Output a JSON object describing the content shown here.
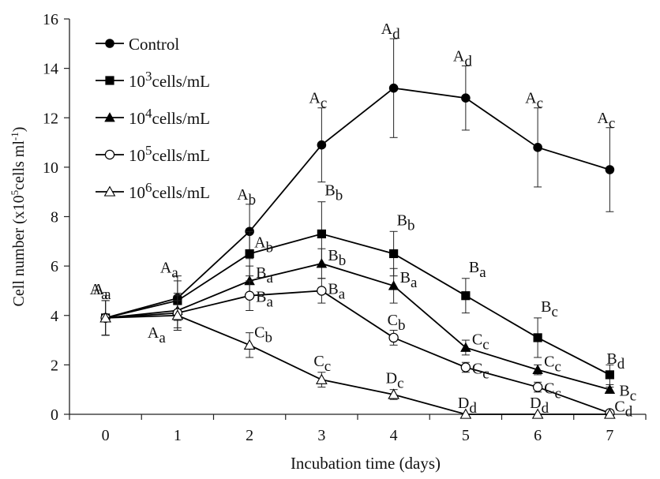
{
  "chart_data": {
    "type": "line",
    "xlabel": "Incubation time (days)",
    "ylabel": {
      "main": "Cell number (x10",
      "exp1": "5",
      "mid": "cells ml",
      "exp2": "-1",
      "end": ")"
    },
    "x": [
      0,
      1,
      2,
      3,
      4,
      5,
      6,
      7
    ],
    "xlim": [
      -0.5,
      7.5
    ],
    "ylim": [
      0,
      16
    ],
    "yticks": [
      0,
      2,
      4,
      6,
      8,
      10,
      12,
      14,
      16
    ],
    "xticks": [
      "0",
      "1",
      "2",
      "3",
      "4",
      "5",
      "6",
      "7"
    ],
    "legend_position": "top-left",
    "series": [
      {
        "name": "Control",
        "name_parts": [
          "Control",
          "",
          ""
        ],
        "marker": "filled-circle",
        "values": [
          3.9,
          4.7,
          7.4,
          10.9,
          13.2,
          12.8,
          10.8,
          9.9
        ],
        "errors": [
          0.7,
          0.9,
          1.1,
          1.5,
          2.0,
          1.3,
          1.6,
          1.7
        ],
        "labels": [
          [
            "A",
            "a"
          ],
          [
            "A",
            "a"
          ],
          [
            "A",
            "b"
          ],
          [
            "A",
            "c"
          ],
          [
            "A",
            "d"
          ],
          [
            "A",
            "d"
          ],
          [
            "A",
            "c"
          ],
          [
            "A",
            "c"
          ]
        ]
      },
      {
        "name": "10^3 cells/mL",
        "name_parts": [
          "10",
          "3",
          "cells/mL"
        ],
        "marker": "filled-square",
        "values": [
          3.9,
          4.6,
          6.5,
          7.3,
          6.5,
          4.8,
          3.1,
          1.6
        ],
        "errors": [
          0.7,
          0.8,
          0.9,
          1.3,
          0.9,
          0.7,
          0.8,
          0.4
        ],
        "labels": [
          null,
          null,
          [
            "A",
            "b"
          ],
          [
            "B",
            "b"
          ],
          [
            "B",
            "b"
          ],
          [
            "B",
            "a"
          ],
          [
            "B",
            "c"
          ],
          [
            "B",
            "d"
          ]
        ]
      },
      {
        "name": "10^4 cells/mL",
        "name_parts": [
          "10",
          "4",
          "cells/mL"
        ],
        "marker": "filled-triangle",
        "values": [
          3.9,
          4.2,
          5.4,
          6.1,
          5.2,
          2.7,
          1.8,
          1.0
        ],
        "errors": [
          0.7,
          0.7,
          0.6,
          0.6,
          0.7,
          0.3,
          0.2,
          0.1
        ],
        "labels": [
          null,
          null,
          [
            "B",
            "a"
          ],
          [
            "B",
            "b"
          ],
          [
            "B",
            "a"
          ],
          [
            "C",
            "c"
          ],
          [
            "C",
            "c"
          ],
          [
            "B",
            "c"
          ]
        ]
      },
      {
        "name": "10^5 cells/mL",
        "name_parts": [
          "10",
          "5",
          "cells/mL"
        ],
        "marker": "open-circle",
        "values": [
          3.9,
          4.1,
          4.8,
          5.0,
          3.1,
          1.9,
          1.1,
          0.05
        ],
        "errors": [
          0.7,
          0.7,
          0.6,
          0.5,
          0.3,
          0.2,
          0.2,
          0.1
        ],
        "labels": [
          null,
          null,
          [
            "B",
            "a"
          ],
          [
            "B",
            "a"
          ],
          [
            "C",
            "b"
          ],
          [
            "C",
            "c"
          ],
          [
            "C",
            "c"
          ],
          [
            "C",
            "d"
          ]
        ]
      },
      {
        "name": "10^6 cells/mL",
        "name_parts": [
          "10",
          "6",
          "cells/mL"
        ],
        "marker": "open-triangle",
        "values": [
          3.9,
          4.0,
          2.8,
          1.4,
          0.8,
          0.0,
          0.0,
          0.0
        ],
        "errors": [
          0.7,
          0.6,
          0.5,
          0.3,
          0.2,
          0.0,
          0.0,
          0.0
        ],
        "labels": [
          [
            "A",
            "a"
          ],
          [
            "A",
            "a"
          ],
          [
            "C",
            "b"
          ],
          [
            "C",
            "c"
          ],
          [
            "D",
            "c"
          ],
          [
            "D",
            "d"
          ],
          [
            "D",
            "d"
          ],
          null
        ]
      }
    ]
  }
}
